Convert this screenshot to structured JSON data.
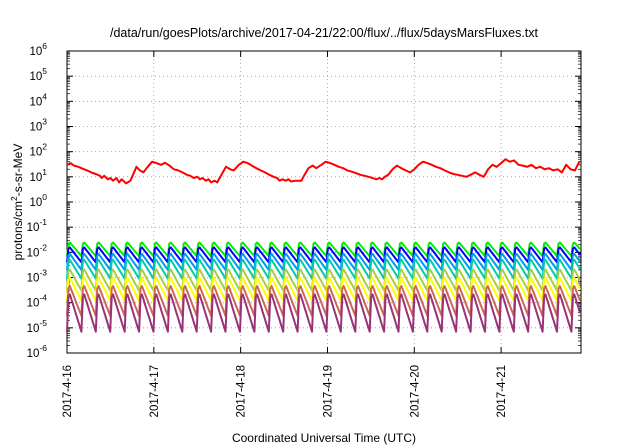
{
  "chart_data": {
    "type": "line",
    "title": "/data/run/goesPlots/archive/2017-04-21/22:00/flux/../flux/5daysMarsFluxes.txt",
    "xlabel": "Coordinated Universal Time (UTC)",
    "ylabel": "protons/cm²-s-sr-MeV",
    "ylabel_parts": {
      "pre": "protons/cm",
      "sup": "2",
      "post": "-s-sr-MeV"
    },
    "yscale": "log",
    "ylim_exponents": [
      -6,
      6
    ],
    "ytick_labels": [
      {
        "base": "10",
        "exp": "-6"
      },
      {
        "base": "10",
        "exp": "-5"
      },
      {
        "base": "10",
        "exp": "-4"
      },
      {
        "base": "10",
        "exp": "-3"
      },
      {
        "base": "10",
        "exp": "-2"
      },
      {
        "base": "10",
        "exp": "-1"
      },
      {
        "base": "10",
        "exp": "0"
      },
      {
        "base": "10",
        "exp": "1"
      },
      {
        "base": "10",
        "exp": "2"
      },
      {
        "base": "10",
        "exp": "3"
      },
      {
        "base": "10",
        "exp": "4"
      },
      {
        "base": "10",
        "exp": "5"
      },
      {
        "base": "10",
        "exp": "6"
      }
    ],
    "x_start": "2017-4-16",
    "x_end": "2017-4-21 22:00",
    "xtick_labels": [
      "2017-4-16",
      "2017-4-17",
      "2017-4-18",
      "2017-4-19",
      "2017-4-20",
      "2017-4-21"
    ],
    "xtick_days": [
      0,
      1,
      2,
      3,
      4,
      5
    ],
    "x_span_days": 5.92,
    "grid": true,
    "series": [
      {
        "color": "#ff0000",
        "points": [
          [
            0.0,
            30
          ],
          [
            0.04,
            35
          ],
          [
            0.08,
            28
          ],
          [
            0.13,
            25
          ],
          [
            0.18,
            21
          ],
          [
            0.23,
            18
          ],
          [
            0.28,
            15
          ],
          [
            0.33,
            13
          ],
          [
            0.38,
            11
          ],
          [
            0.4,
            9
          ],
          [
            0.43,
            11
          ],
          [
            0.47,
            8
          ],
          [
            0.5,
            9
          ],
          [
            0.53,
            7
          ],
          [
            0.57,
            9
          ],
          [
            0.6,
            6
          ],
          [
            0.63,
            8
          ],
          [
            0.68,
            5.5
          ],
          [
            0.73,
            7
          ],
          [
            0.76,
            12
          ],
          [
            0.8,
            25
          ],
          [
            0.84,
            18
          ],
          [
            0.88,
            15
          ],
          [
            0.93,
            25
          ],
          [
            0.98,
            40
          ],
          [
            1.03,
            35
          ],
          [
            1.08,
            30
          ],
          [
            1.13,
            36
          ],
          [
            1.18,
            28
          ],
          [
            1.23,
            20
          ],
          [
            1.28,
            18
          ],
          [
            1.33,
            15
          ],
          [
            1.38,
            12
          ],
          [
            1.42,
            11
          ],
          [
            1.46,
            9
          ],
          [
            1.5,
            10
          ],
          [
            1.53,
            8
          ],
          [
            1.56,
            9
          ],
          [
            1.6,
            7
          ],
          [
            1.63,
            8
          ],
          [
            1.66,
            6
          ],
          [
            1.7,
            7
          ],
          [
            1.73,
            6
          ],
          [
            1.78,
            12
          ],
          [
            1.83,
            25
          ],
          [
            1.88,
            20
          ],
          [
            1.92,
            18
          ],
          [
            1.98,
            30
          ],
          [
            2.03,
            40
          ],
          [
            2.08,
            35
          ],
          [
            2.13,
            28
          ],
          [
            2.18,
            22
          ],
          [
            2.23,
            18
          ],
          [
            2.28,
            15
          ],
          [
            2.33,
            12
          ],
          [
            2.38,
            10
          ],
          [
            2.42,
            9
          ],
          [
            2.45,
            7
          ],
          [
            2.48,
            8
          ],
          [
            2.52,
            7
          ],
          [
            2.55,
            8
          ],
          [
            2.58,
            6.5
          ],
          [
            2.63,
            7
          ],
          [
            2.7,
            7
          ],
          [
            2.73,
            11
          ],
          [
            2.78,
            22
          ],
          [
            2.83,
            28
          ],
          [
            2.87,
            22
          ],
          [
            2.93,
            30
          ],
          [
            2.98,
            40
          ],
          [
            3.03,
            35
          ],
          [
            3.08,
            30
          ],
          [
            3.13,
            25
          ],
          [
            3.18,
            22
          ],
          [
            3.23,
            18
          ],
          [
            3.28,
            16
          ],
          [
            3.33,
            14
          ],
          [
            3.38,
            12
          ],
          [
            3.43,
            11
          ],
          [
            3.47,
            10
          ],
          [
            3.52,
            9
          ],
          [
            3.56,
            8
          ],
          [
            3.6,
            9
          ],
          [
            3.63,
            8
          ],
          [
            3.66,
            10
          ],
          [
            3.7,
            12
          ],
          [
            3.75,
            20
          ],
          [
            3.8,
            28
          ],
          [
            3.85,
            22
          ],
          [
            3.9,
            18
          ],
          [
            3.95,
            15
          ],
          [
            4.0,
            20
          ],
          [
            4.05,
            30
          ],
          [
            4.1,
            40
          ],
          [
            4.15,
            35
          ],
          [
            4.2,
            30
          ],
          [
            4.25,
            25
          ],
          [
            4.3,
            22
          ],
          [
            4.35,
            18
          ],
          [
            4.4,
            15
          ],
          [
            4.45,
            13
          ],
          [
            4.5,
            12
          ],
          [
            4.55,
            11
          ],
          [
            4.6,
            10
          ],
          [
            4.65,
            12
          ],
          [
            4.7,
            15
          ],
          [
            4.75,
            12
          ],
          [
            4.8,
            10
          ],
          [
            4.85,
            20
          ],
          [
            4.9,
            30
          ],
          [
            4.95,
            25
          ],
          [
            5.0,
            35
          ],
          [
            5.05,
            50
          ],
          [
            5.1,
            40
          ],
          [
            5.15,
            45
          ],
          [
            5.2,
            30
          ],
          [
            5.25,
            28
          ],
          [
            5.3,
            25
          ],
          [
            5.35,
            30
          ],
          [
            5.4,
            22
          ],
          [
            5.45,
            25
          ],
          [
            5.5,
            20
          ],
          [
            5.55,
            22
          ],
          [
            5.6,
            18
          ],
          [
            5.65,
            20
          ],
          [
            5.7,
            15
          ],
          [
            5.75,
            30
          ],
          [
            5.8,
            20
          ],
          [
            5.85,
            18
          ],
          [
            5.9,
            40
          ]
        ]
      },
      {
        "color": "#00ee00",
        "spike_series": true,
        "period_days": 0.166,
        "peak": 0.028,
        "trough": 0.007
      },
      {
        "color": "#0000ff",
        "spike_series": true,
        "period_days": 0.166,
        "peak": 0.018,
        "trough": 0.004
      },
      {
        "color": "#0099ee",
        "spike_series": true,
        "period_days": 0.166,
        "peak": 0.01,
        "trough": 0.002
      },
      {
        "color": "#00ccaa",
        "spike_series": true,
        "period_days": 0.166,
        "peak": 0.006,
        "trough": 0.0009
      },
      {
        "color": "#aacc44",
        "spike_series": true,
        "period_days": 0.166,
        "peak": 0.0025,
        "trough": 0.0003
      },
      {
        "color": "#ffff00",
        "spike_series": true,
        "period_days": 0.166,
        "peak": 0.0012,
        "trough": 0.00012
      },
      {
        "color": "#cc6655",
        "spike_series": true,
        "period_days": 0.166,
        "peak": 0.0006,
        "trough": 3e-05
      },
      {
        "color": "#993377",
        "spike_series": true,
        "period_days": 0.166,
        "peak": 0.0003,
        "trough": 7e-06
      }
    ]
  }
}
